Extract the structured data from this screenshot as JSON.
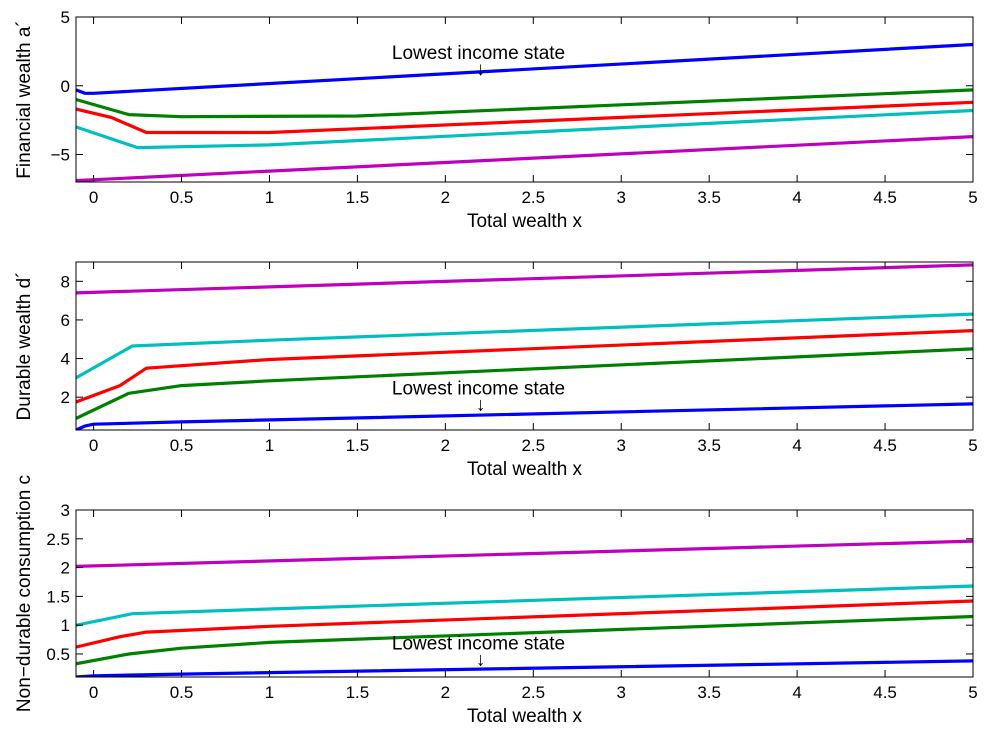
{
  "chart_data": [
    {
      "type": "line",
      "xlabel": "Total wealth x",
      "ylabel": "Financial wealth a´",
      "xlim": [
        -0.1,
        5
      ],
      "ylim": [
        -7,
        5
      ],
      "xticks": [
        0,
        0.5,
        1,
        1.5,
        2,
        2.5,
        3,
        3.5,
        4,
        4.5,
        5
      ],
      "xtick_labels": [
        "0",
        "0.5",
        "1",
        "1.5",
        "2",
        "2.5",
        "3",
        "3.5",
        "4",
        "4.5",
        "5"
      ],
      "yticks": [
        -5,
        0,
        5
      ],
      "ytick_labels": [
        "−5",
        "0",
        "5"
      ],
      "annotation": {
        "text": "Lowest income state",
        "arrow": "↓",
        "x": 2.2,
        "y": 0.8
      },
      "series": [
        {
          "color": "#0000ff",
          "points": [
            [
              -0.1,
              -0.3
            ],
            [
              -0.05,
              -0.55
            ],
            [
              0,
              -0.55
            ],
            [
              5,
              3.0
            ]
          ]
        },
        {
          "color": "#008000",
          "points": [
            [
              -0.1,
              -1.0
            ],
            [
              0.2,
              -2.1
            ],
            [
              0.5,
              -2.25
            ],
            [
              1.5,
              -2.2
            ],
            [
              5,
              -0.3
            ]
          ]
        },
        {
          "color": "#ff0000",
          "points": [
            [
              -0.1,
              -1.7
            ],
            [
              0.1,
              -2.3
            ],
            [
              0.3,
              -3.4
            ],
            [
              1.0,
              -3.4
            ],
            [
              5,
              -1.2
            ]
          ]
        },
        {
          "color": "#00bfbf",
          "points": [
            [
              -0.1,
              -3.0
            ],
            [
              0.25,
              -4.5
            ],
            [
              1.0,
              -4.3
            ],
            [
              5,
              -1.8
            ]
          ]
        },
        {
          "color": "#bf00bf",
          "points": [
            [
              -0.1,
              -6.9
            ],
            [
              5,
              -3.7
            ]
          ]
        }
      ]
    },
    {
      "type": "line",
      "xlabel": "Total wealth x",
      "ylabel": "Durable wealth d´",
      "xlim": [
        -0.1,
        5
      ],
      "ylim": [
        0.3,
        9
      ],
      "xticks": [
        0,
        0.5,
        1,
        1.5,
        2,
        2.5,
        3,
        3.5,
        4,
        4.5,
        5
      ],
      "xtick_labels": [
        "0",
        "0.5",
        "1",
        "1.5",
        "2",
        "2.5",
        "3",
        "3.5",
        "4",
        "4.5",
        "5"
      ],
      "yticks": [
        2,
        4,
        6,
        8
      ],
      "ytick_labels": [
        "2",
        "4",
        "6",
        "8"
      ],
      "annotation": {
        "text": "Lowest income state",
        "arrow": "↓",
        "x": 2.2,
        "y": 1.3
      },
      "series": [
        {
          "color": "#0000ff",
          "points": [
            [
              -0.1,
              0.3
            ],
            [
              -0.05,
              0.5
            ],
            [
              0,
              0.6
            ],
            [
              0.5,
              0.72
            ],
            [
              5,
              1.65
            ]
          ]
        },
        {
          "color": "#008000",
          "points": [
            [
              -0.1,
              0.9
            ],
            [
              0.2,
              2.2
            ],
            [
              0.5,
              2.6
            ],
            [
              1.0,
              2.85
            ],
            [
              5,
              4.5
            ]
          ]
        },
        {
          "color": "#ff0000",
          "points": [
            [
              -0.1,
              1.75
            ],
            [
              0.15,
              2.6
            ],
            [
              0.3,
              3.5
            ],
            [
              1.0,
              3.95
            ],
            [
              5,
              5.45
            ]
          ]
        },
        {
          "color": "#00bfbf",
          "points": [
            [
              -0.1,
              3.0
            ],
            [
              0.22,
              4.65
            ],
            [
              1.0,
              4.95
            ],
            [
              5,
              6.3
            ]
          ]
        },
        {
          "color": "#bf00bf",
          "points": [
            [
              -0.1,
              7.4
            ],
            [
              5,
              8.85
            ]
          ]
        }
      ]
    },
    {
      "type": "line",
      "xlabel": "Total wealth x",
      "ylabel": "Non−durable consumption c",
      "xlim": [
        -0.1,
        5
      ],
      "ylim": [
        0.1,
        3
      ],
      "xticks": [
        0,
        0.5,
        1,
        1.5,
        2,
        2.5,
        3,
        3.5,
        4,
        4.5,
        5
      ],
      "xtick_labels": [
        "0",
        "0.5",
        "1",
        "1.5",
        "2",
        "2.5",
        "3",
        "3.5",
        "4",
        "4.5",
        "5"
      ],
      "yticks": [
        0.5,
        1,
        1.5,
        2,
        2.5,
        3
      ],
      "ytick_labels": [
        "0.5",
        "1",
        "1.5",
        "2",
        "2.5",
        "3"
      ],
      "annotation": {
        "text": "Lowest income state",
        "arrow": "↓",
        "x": 2.2,
        "y": 0.3
      },
      "series": [
        {
          "color": "#0000ff",
          "points": [
            [
              -0.1,
              0.1
            ],
            [
              0,
              0.12
            ],
            [
              0.5,
              0.15
            ],
            [
              5,
              0.38
            ]
          ]
        },
        {
          "color": "#008000",
          "points": [
            [
              -0.1,
              0.33
            ],
            [
              0.2,
              0.5
            ],
            [
              0.5,
              0.6
            ],
            [
              1.0,
              0.7
            ],
            [
              5,
              1.15
            ]
          ]
        },
        {
          "color": "#ff0000",
          "points": [
            [
              -0.1,
              0.62
            ],
            [
              0.15,
              0.8
            ],
            [
              0.3,
              0.88
            ],
            [
              1.0,
              0.98
            ],
            [
              5,
              1.42
            ]
          ]
        },
        {
          "color": "#00bfbf",
          "points": [
            [
              -0.1,
              1.0
            ],
            [
              0.22,
              1.2
            ],
            [
              1.0,
              1.28
            ],
            [
              5,
              1.68
            ]
          ]
        },
        {
          "color": "#bf00bf",
          "points": [
            [
              -0.1,
              2.02
            ],
            [
              5,
              2.46
            ]
          ]
        }
      ]
    }
  ]
}
